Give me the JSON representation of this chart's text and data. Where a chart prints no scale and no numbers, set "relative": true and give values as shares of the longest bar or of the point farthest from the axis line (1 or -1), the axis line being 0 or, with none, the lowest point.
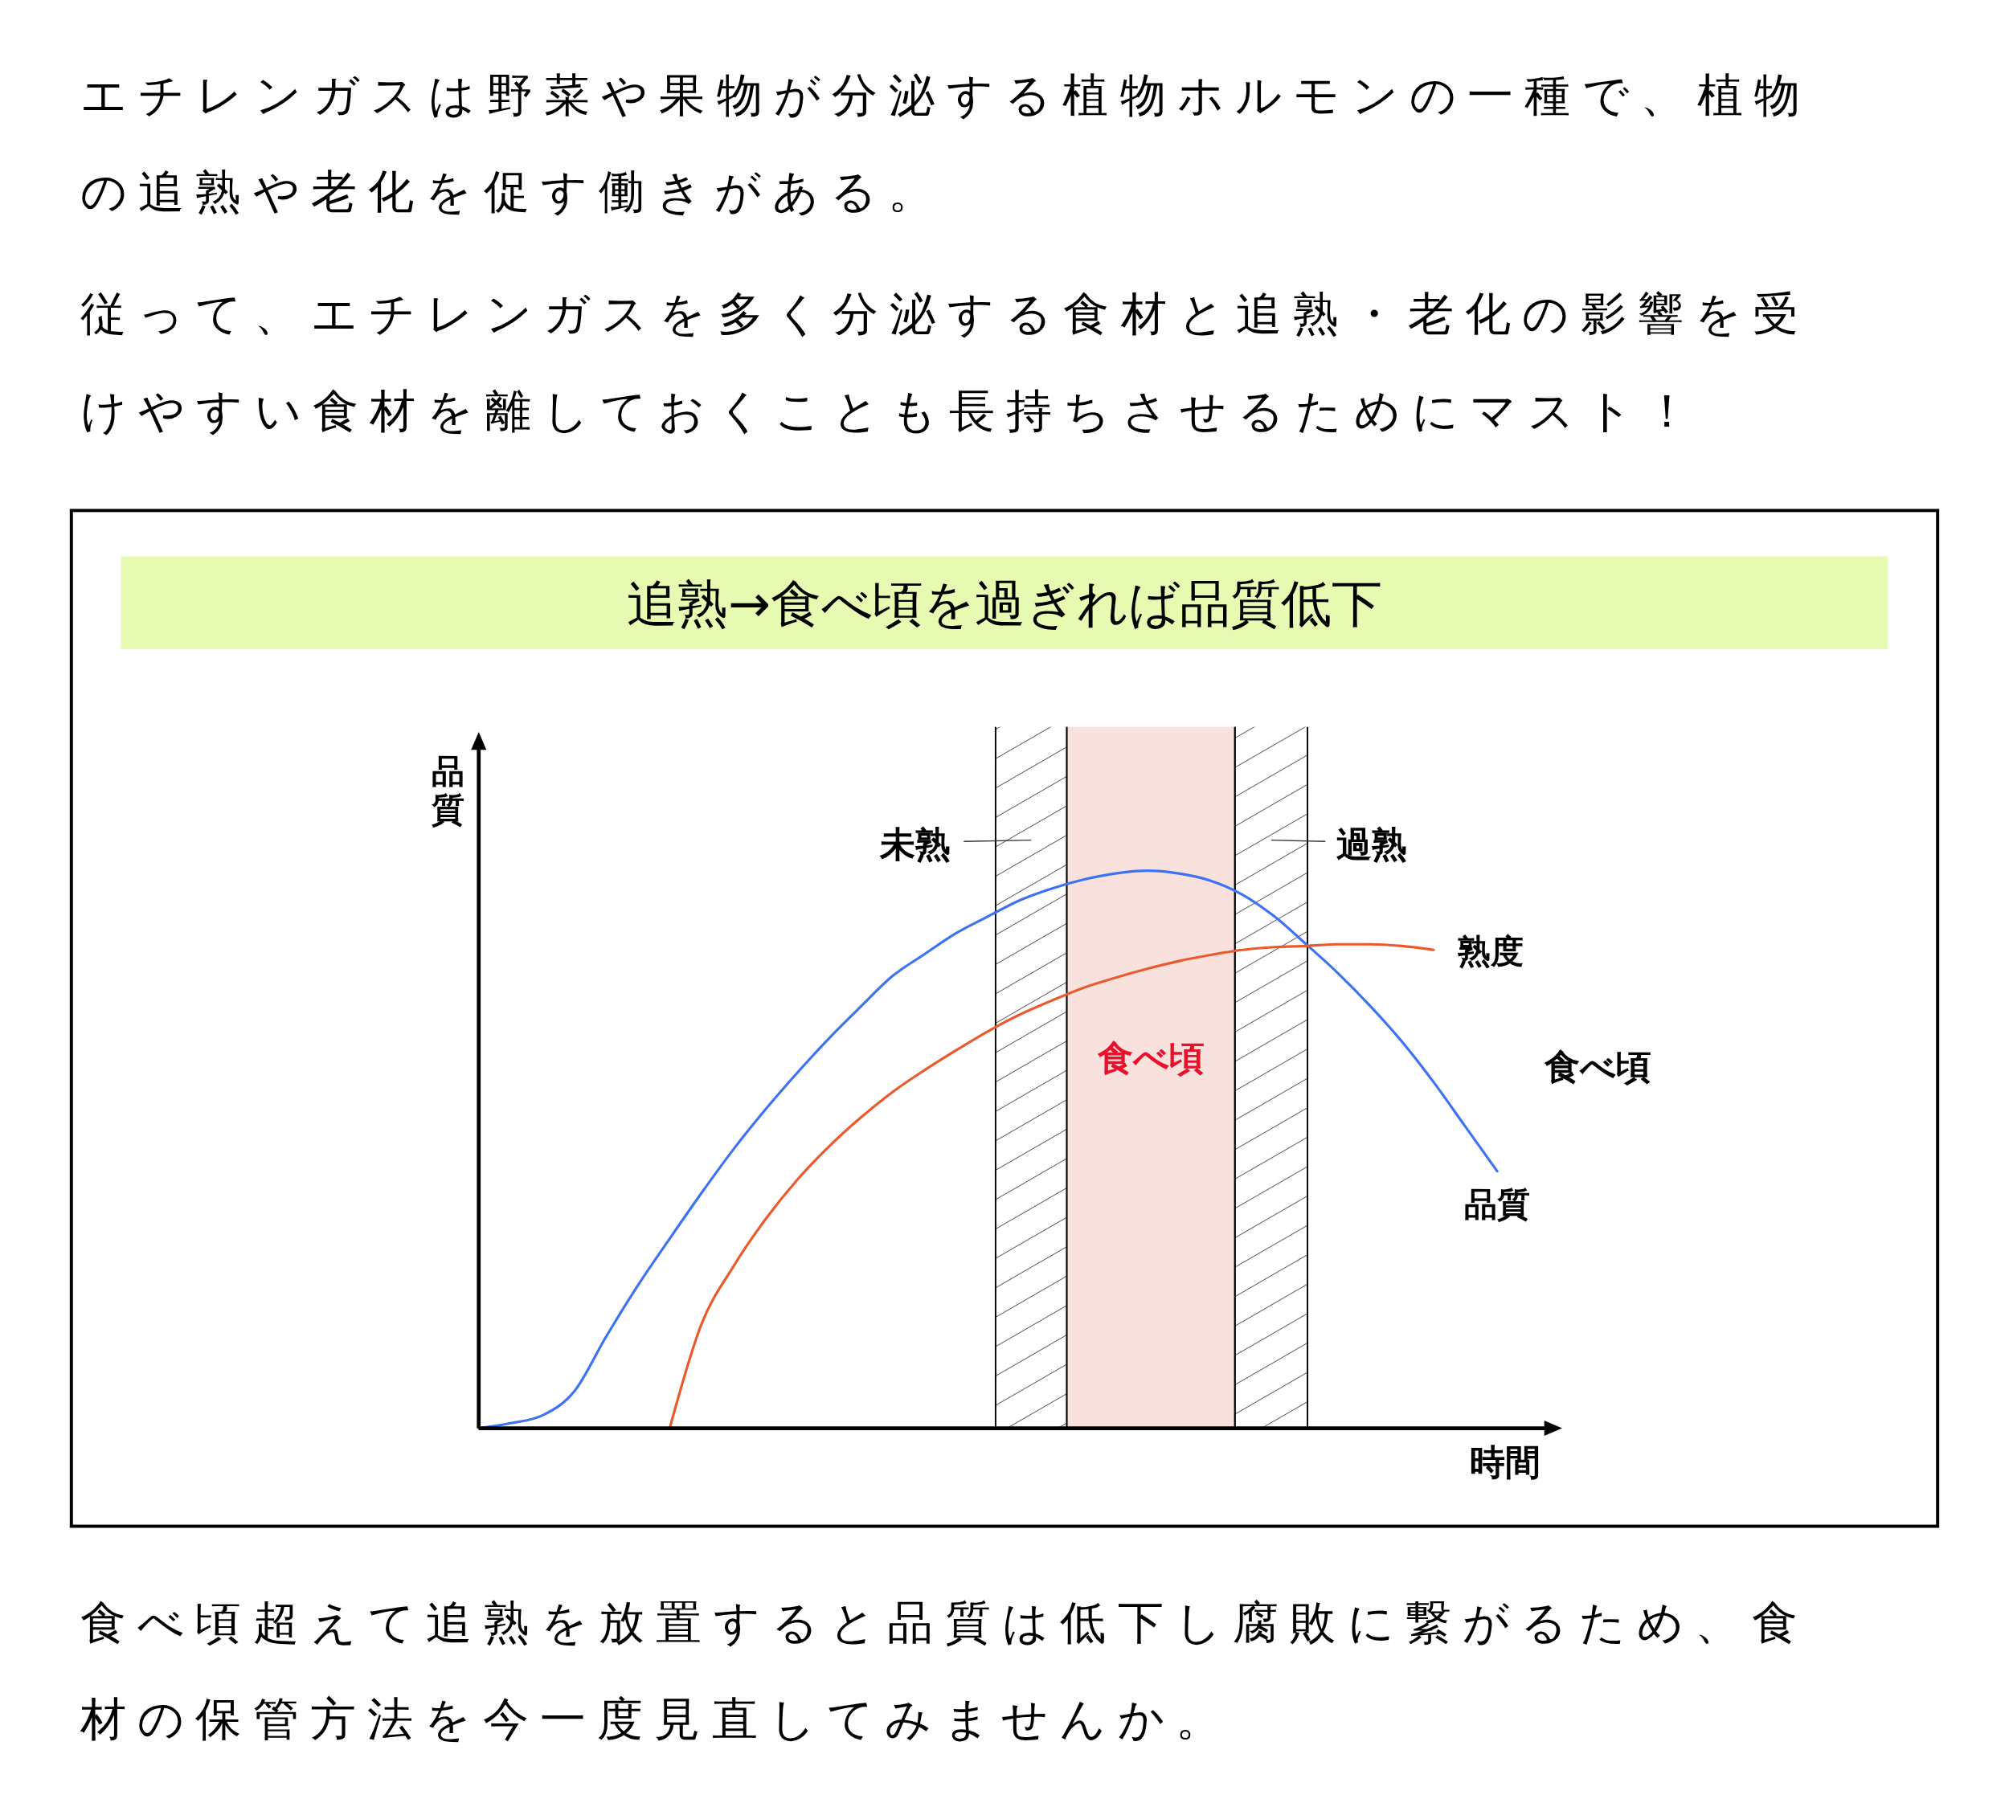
{
  "chart_data": {
    "type": "line",
    "relative": true,
    "title": "追熟→食べ頃を過ぎれば品質低下",
    "xlabel": "時間",
    "ylabel": "品質",
    "categories": [
      null,
      null,
      null,
      null,
      null,
      null,
      null,
      null,
      null,
      null,
      null,
      null,
      null,
      null,
      null,
      null,
      null,
      null,
      null,
      null,
      null,
      null,
      null,
      null,
      null,
      null,
      null,
      null,
      null,
      null,
      null,
      null,
      null
    ],
    "series": [
      {
        "name": "品質",
        "color": "#3d72f2",
        "values": [
          0,
          0.009,
          0.023,
          0.066,
          0.164,
          0.256,
          0.34,
          0.422,
          0.5,
          0.571,
          0.637,
          0.699,
          0.756,
          0.811,
          0.85,
          0.888,
          0.918,
          0.947,
          0.968,
          0.984,
          0.995,
          1,
          0.995,
          0.982,
          0.957,
          0.918,
          0.868,
          0.816,
          0.758,
          0.694,
          0.621,
          0.541,
          0.461
        ]
      },
      {
        "name": "熟度",
        "color": "#ea5a2c",
        "values": [
          null,
          null,
          null,
          null,
          null,
          null,
          0,
          0.187,
          0.29,
          0.374,
          0.445,
          0.505,
          0.557,
          0.603,
          0.642,
          0.678,
          0.712,
          0.742,
          0.767,
          0.79,
          0.808,
          0.824,
          0.838,
          0.849,
          0.858,
          0.863,
          0.865,
          0.868,
          0.868,
          0.865,
          0.858,
          null,
          null
        ]
      }
    ],
    "annotations": [
      "エチレンガスは野菜や果物が分泌する植物ホルモンの一種で、植物の追熟や老化を促す働きがある。",
      "従って、エチレンガスを多く分泌する食材と追熟・老化の影響を受けやすい食材を離しておくことも長持ちさせるためにマスト！",
      "未熟",
      "食べ頃",
      "過熟",
      "食べ頃",
      "食べ頃超えて追熟を放置すると品質は低下し腐敗に繋がるため、食材の保管方法を今一度見直してみませんか。"
    ]
  }
}
